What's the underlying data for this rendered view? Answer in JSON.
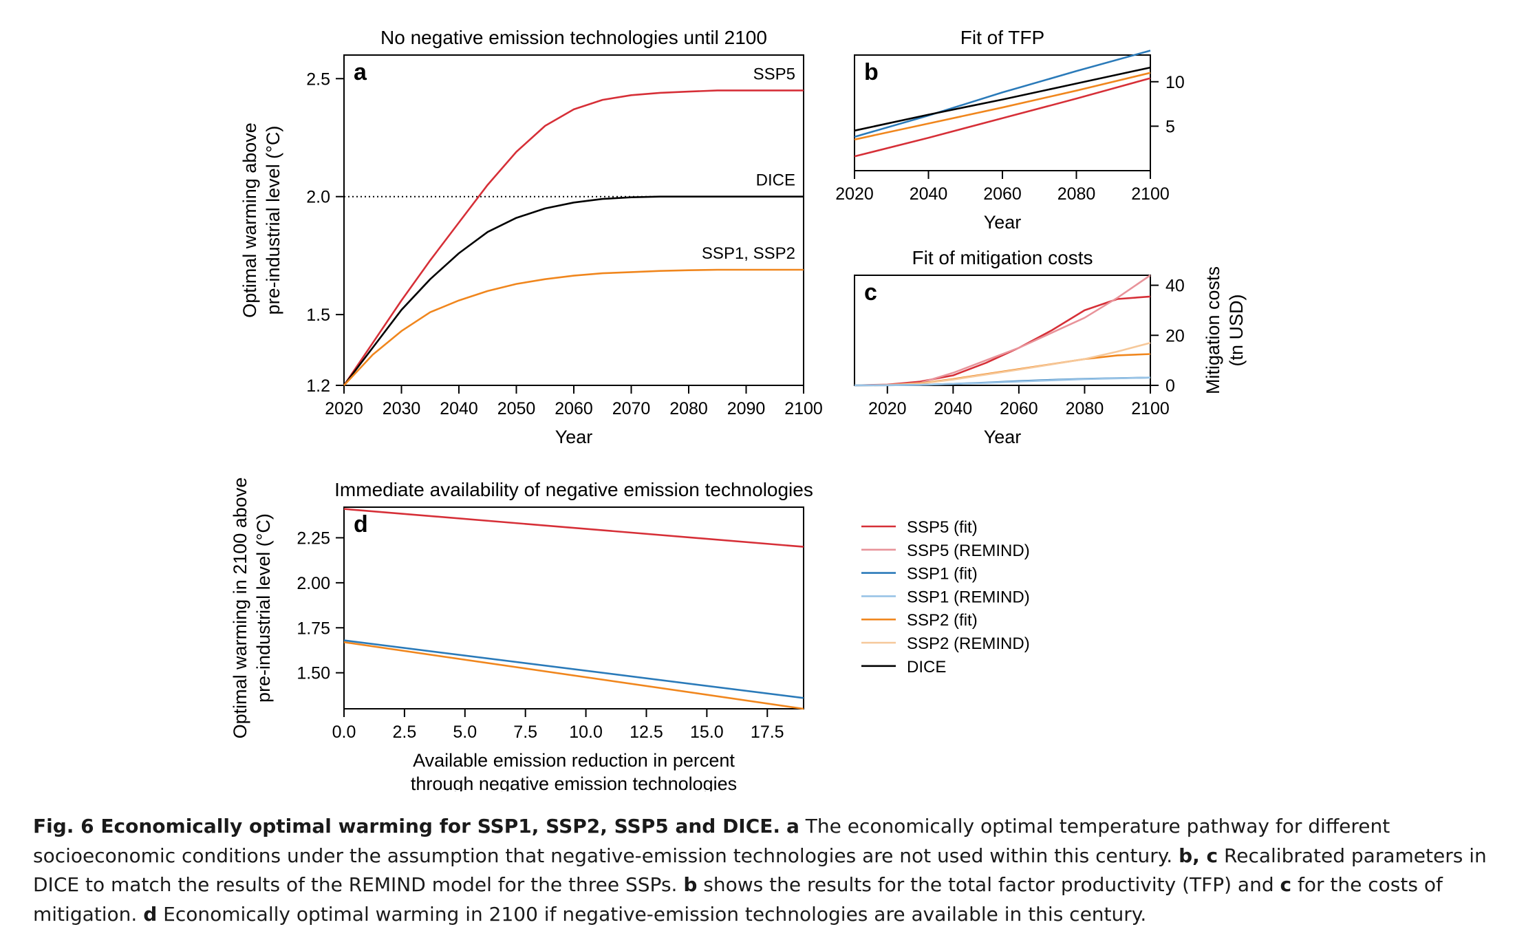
{
  "chart_data": [
    {
      "panel": "a",
      "type": "line",
      "title": "No negative emission technologies until 2100",
      "xlabel": "Year",
      "ylabel_lines": [
        "Optimal warming above",
        "pre-industrial level (°C)"
      ],
      "xlim": [
        2020,
        2100
      ],
      "ylim": [
        1.2,
        2.6
      ],
      "xticks": [
        2020,
        2030,
        2040,
        2050,
        2060,
        2070,
        2080,
        2090,
        2100
      ],
      "yticks": [
        1.2,
        1.5,
        2.0,
        2.5
      ],
      "reference_line": {
        "y": 2.0,
        "style": "dotted"
      },
      "x": [
        2020,
        2025,
        2030,
        2035,
        2040,
        2045,
        2050,
        2055,
        2060,
        2065,
        2070,
        2075,
        2080,
        2085,
        2090,
        2095,
        2100
      ],
      "series": [
        {
          "label": "SSP5",
          "color": "#d62f37",
          "values": [
            1.2,
            1.38,
            1.56,
            1.73,
            1.89,
            2.05,
            2.19,
            2.3,
            2.37,
            2.41,
            2.43,
            2.44,
            2.445,
            2.45,
            2.45,
            2.45,
            2.45
          ]
        },
        {
          "label": "DICE",
          "color": "#000000",
          "values": [
            1.2,
            1.36,
            1.52,
            1.65,
            1.76,
            1.85,
            1.91,
            1.95,
            1.975,
            1.99,
            1.997,
            2.0,
            2.0,
            2.0,
            2.0,
            2.0,
            2.0
          ]
        },
        {
          "label": "SSP1, SSP2",
          "color": "#f0861d",
          "values": [
            1.2,
            1.33,
            1.43,
            1.51,
            1.56,
            1.6,
            1.63,
            1.65,
            1.665,
            1.675,
            1.68,
            1.685,
            1.688,
            1.69,
            1.69,
            1.69,
            1.69
          ]
        }
      ]
    },
    {
      "panel": "b",
      "type": "line",
      "title": "Fit of TFP",
      "xlabel": "Year",
      "xlim": [
        2020,
        2100
      ],
      "ylim": [
        0,
        13
      ],
      "xticks": [
        2020,
        2040,
        2060,
        2080,
        2100
      ],
      "yticks_right": [
        5,
        10
      ],
      "x": [
        2020,
        2040,
        2060,
        2080,
        2100
      ],
      "series": [
        {
          "name": "SSP1",
          "color": "#2a7ab9",
          "values": [
            3.8,
            6.2,
            8.8,
            11.2,
            13.5
          ]
        },
        {
          "name": "DICE",
          "color": "#000000",
          "values": [
            4.5,
            6.3,
            8.0,
            9.8,
            11.6
          ]
        },
        {
          "name": "SSP2",
          "color": "#f0861d",
          "values": [
            3.5,
            5.3,
            7.1,
            9.0,
            11.0
          ]
        },
        {
          "name": "SSP5",
          "color": "#d62f37",
          "values": [
            1.6,
            3.7,
            5.9,
            8.1,
            10.4
          ]
        }
      ]
    },
    {
      "panel": "c",
      "type": "line",
      "title": "Fit of mitigation costs",
      "xlabel": "Year",
      "ylabel_right_lines": [
        "Mitigation costs",
        "(tn USD)"
      ],
      "xlim": [
        2010,
        2100
      ],
      "ylim": [
        0,
        44
      ],
      "xticks": [
        2020,
        2040,
        2060,
        2080,
        2100
      ],
      "yticks_right": [
        0,
        20,
        40
      ],
      "x": [
        2010,
        2020,
        2030,
        2040,
        2050,
        2060,
        2070,
        2080,
        2090,
        2100
      ],
      "series": [
        {
          "name": "SSP5 (fit)",
          "color": "#d62f37",
          "values": [
            0,
            0.3,
            1.5,
            4.0,
            9.0,
            15.0,
            22.0,
            30.0,
            34.5,
            35.5
          ]
        },
        {
          "name": "SSP5 (REMIND)",
          "color": "#e8939a",
          "values": [
            0,
            0.2,
            1.0,
            5.0,
            10.0,
            15.0,
            21.0,
            27.0,
            35.0,
            44.0
          ]
        },
        {
          "name": "SSP2 (fit)",
          "color": "#f0861d",
          "values": [
            0,
            0.1,
            0.8,
            2.5,
            4.5,
            6.5,
            8.5,
            10.5,
            12.0,
            12.5
          ]
        },
        {
          "name": "SSP2 (REMIND)",
          "color": "#f6c89a",
          "values": [
            0,
            0.1,
            0.7,
            2.3,
            4.3,
            6.3,
            8.4,
            10.5,
            13.5,
            17.0
          ]
        },
        {
          "name": "SSP1 (fit)",
          "color": "#2a7ab9",
          "values": [
            0,
            0.05,
            0.2,
            0.6,
            1.1,
            1.7,
            2.2,
            2.6,
            2.9,
            3.1
          ]
        },
        {
          "name": "SSP1 (REMIND)",
          "color": "#98c3e6",
          "values": [
            0,
            0.05,
            0.2,
            0.6,
            1.0,
            1.5,
            2.0,
            2.5,
            2.8,
            3.1
          ]
        }
      ]
    },
    {
      "panel": "d",
      "type": "line",
      "title": "Immediate availability of negative emission technologies",
      "xlabel_lines": [
        "Available emission reduction in percent",
        "through negative emission technologies"
      ],
      "ylabel_lines": [
        "Optimal warming in 2100 above",
        "pre-industrial level (°C)"
      ],
      "xlim": [
        0,
        19
      ],
      "ylim": [
        1.3,
        2.42
      ],
      "xticks": [
        0.0,
        2.5,
        5.0,
        7.5,
        10.0,
        12.5,
        15.0,
        17.5
      ],
      "yticks": [
        1.5,
        1.75,
        2.0,
        2.25
      ],
      "x": [
        0,
        19
      ],
      "series": [
        {
          "name": "SSP5",
          "color": "#d62f37",
          "values": [
            2.41,
            2.2
          ]
        },
        {
          "name": "SSP1",
          "color": "#2a7ab9",
          "values": [
            1.68,
            1.36
          ]
        },
        {
          "name": "SSP2",
          "color": "#f0861d",
          "values": [
            1.67,
            1.3
          ]
        }
      ]
    }
  ],
  "legend": [
    {
      "label": "SSP5 (fit)",
      "color": "#d62f37"
    },
    {
      "label": "SSP5 (REMIND)",
      "color": "#e8939a"
    },
    {
      "label": "SSP1 (fit)",
      "color": "#2a7ab9"
    },
    {
      "label": "SSP1 (REMIND)",
      "color": "#98c3e6"
    },
    {
      "label": "SSP2 (fit)",
      "color": "#f0861d"
    },
    {
      "label": "SSP2 (REMIND)",
      "color": "#f6c89a"
    },
    {
      "label": "DICE",
      "color": "#000000"
    }
  ],
  "caption": {
    "fig": "Fig. 6 Economically optimal warming for SSP1, SSP2, SSP5 and DICE.",
    "a_letter": "a",
    "a_text": "The economically optimal temperature pathway for different socioeconomic conditions under the assumption that negative-emission technologies are not used within this century.",
    "bc_letters": "b, c",
    "bc_text": "Recalibrated parameters in DICE to match the results of the REMIND model for the three SSPs.",
    "b_letter": "b",
    "b_text": "shows the results for the total factor productivity (TFP) and",
    "c_letter": "c",
    "c_text": "for the costs of mitigation.",
    "d_letter": "d",
    "d_text": "Economically optimal warming in 2100 if negative-emission technologies are available in this century."
  }
}
